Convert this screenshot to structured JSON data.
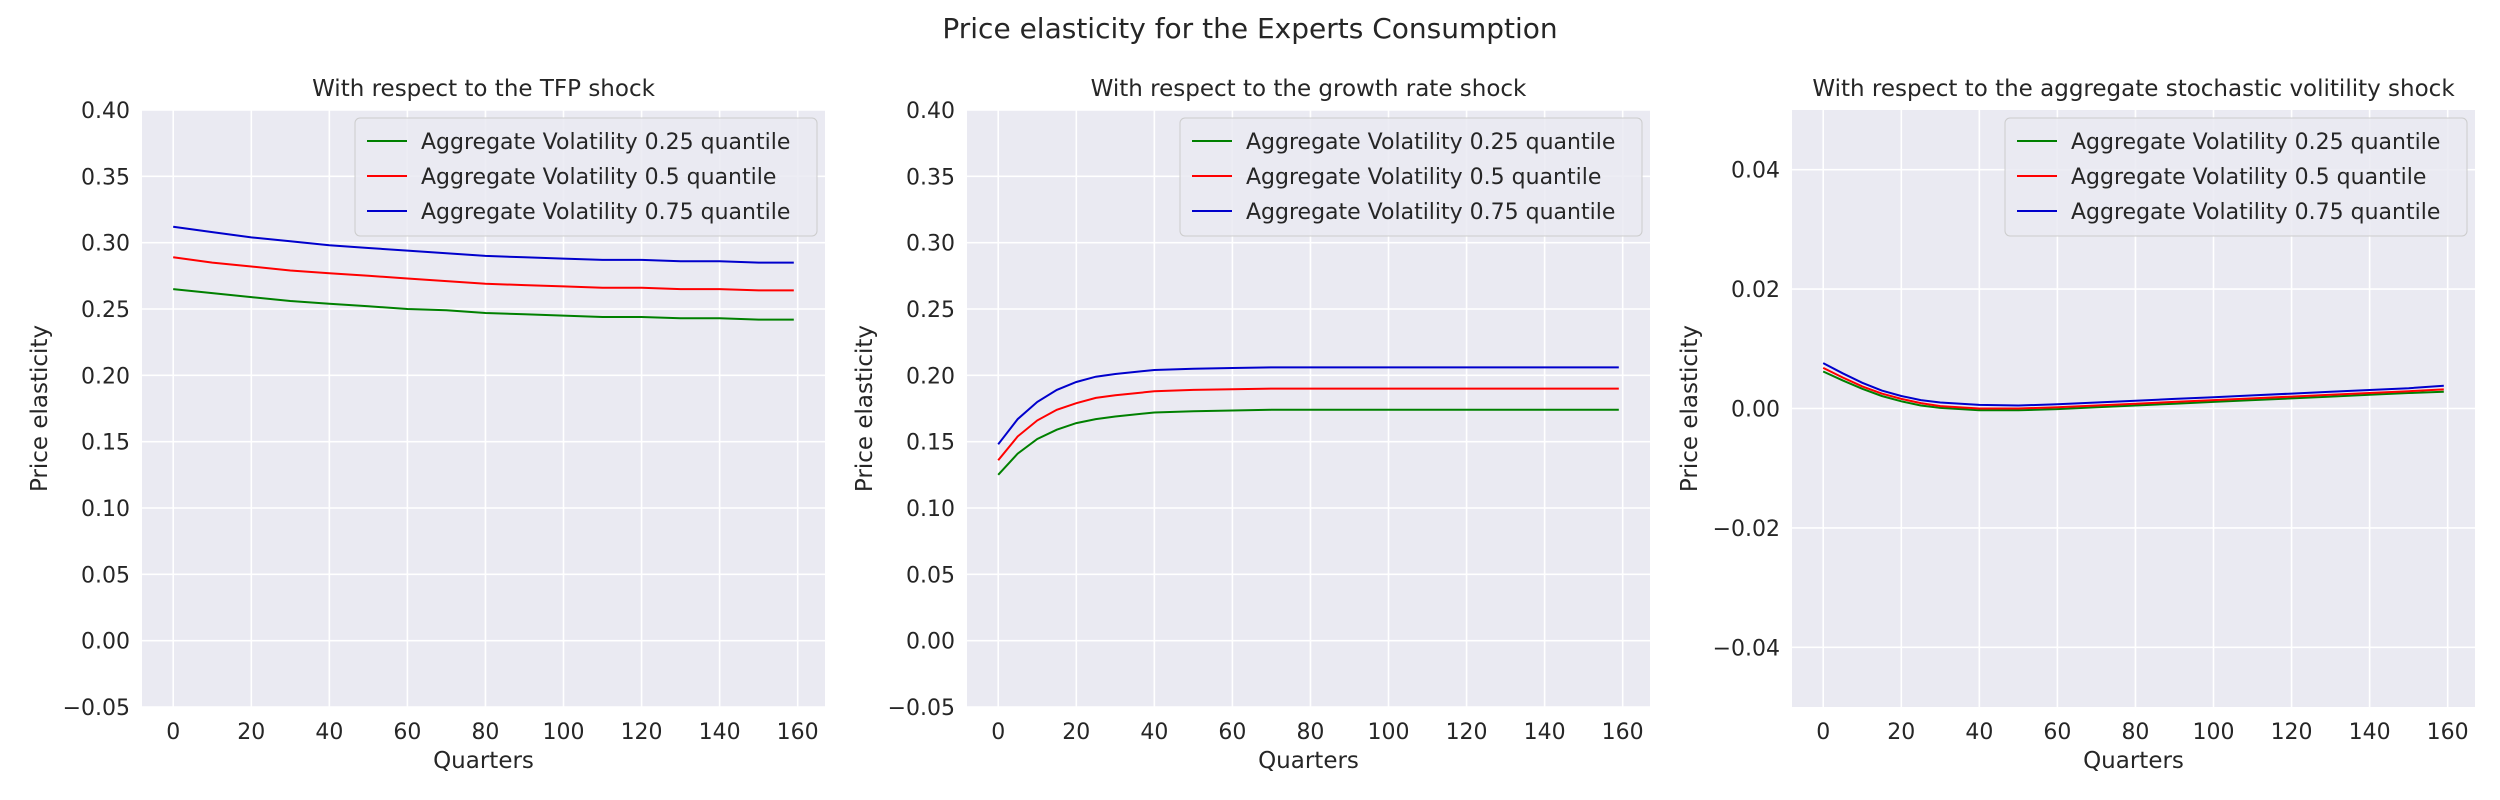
{
  "figure_title": "Price elasticity for the Experts Consumption",
  "chart_data": [
    {
      "type": "line",
      "title": "With respect to the TFP shock",
      "xlabel": "Quarters",
      "ylabel": "Price elasticity",
      "xlim": [
        -8,
        167
      ],
      "ylim": [
        -0.05,
        0.4
      ],
      "xticks": [
        0,
        20,
        40,
        60,
        80,
        100,
        120,
        140,
        160
      ],
      "xtick_labels": [
        "0",
        "20",
        "40",
        "60",
        "80",
        "100",
        "120",
        "140",
        "160"
      ],
      "yticks": [
        -0.05,
        0,
        0.05,
        0.1,
        0.15,
        0.2,
        0.25,
        0.3,
        0.35,
        0.4
      ],
      "ytick_labels": [
        "−0.05",
        "0.00",
        "0.05",
        "0.10",
        "0.15",
        "0.20",
        "0.25",
        "0.30",
        "0.35",
        "0.40"
      ],
      "grid": true,
      "legend_position": "top-right",
      "series": [
        {
          "name": "Aggregate Volatility 0.25 quantile",
          "color": "#008000",
          "x": [
            0,
            10,
            20,
            30,
            40,
            50,
            60,
            70,
            80,
            90,
            100,
            110,
            120,
            130,
            140,
            150,
            159
          ],
          "y": [
            0.265,
            0.262,
            0.259,
            0.256,
            0.254,
            0.252,
            0.25,
            0.249,
            0.247,
            0.246,
            0.245,
            0.244,
            0.244,
            0.243,
            0.243,
            0.242,
            0.242
          ]
        },
        {
          "name": "Aggregate Volatility 0.5 quantile",
          "color": "#ff0000",
          "x": [
            0,
            10,
            20,
            30,
            40,
            50,
            60,
            70,
            80,
            90,
            100,
            110,
            120,
            130,
            140,
            150,
            159
          ],
          "y": [
            0.289,
            0.285,
            0.282,
            0.279,
            0.277,
            0.275,
            0.273,
            0.271,
            0.269,
            0.268,
            0.267,
            0.266,
            0.266,
            0.265,
            0.265,
            0.264,
            0.264
          ]
        },
        {
          "name": "Aggregate Volatility 0.75 quantile",
          "color": "#0000cc",
          "x": [
            0,
            10,
            20,
            30,
            40,
            50,
            60,
            70,
            80,
            90,
            100,
            110,
            120,
            130,
            140,
            150,
            159
          ],
          "y": [
            0.312,
            0.308,
            0.304,
            0.301,
            0.298,
            0.296,
            0.294,
            0.292,
            0.29,
            0.289,
            0.288,
            0.287,
            0.287,
            0.286,
            0.286,
            0.285,
            0.285
          ]
        }
      ]
    },
    {
      "type": "line",
      "title": "With respect to the growth rate shock",
      "xlabel": "Quarters",
      "ylabel": "Price elasticity",
      "xlim": [
        -8,
        167
      ],
      "ylim": [
        -0.05,
        0.4
      ],
      "xticks": [
        0,
        20,
        40,
        60,
        80,
        100,
        120,
        140,
        160
      ],
      "xtick_labels": [
        "0",
        "20",
        "40",
        "60",
        "80",
        "100",
        "120",
        "140",
        "160"
      ],
      "yticks": [
        -0.05,
        0,
        0.05,
        0.1,
        0.15,
        0.2,
        0.25,
        0.3,
        0.35,
        0.4
      ],
      "ytick_labels": [
        "−0.05",
        "0.00",
        "0.05",
        "0.10",
        "0.15",
        "0.20",
        "0.25",
        "0.30",
        "0.35",
        "0.40"
      ],
      "grid": true,
      "legend_position": "top-right",
      "series": [
        {
          "name": "Aggregate Volatility 0.25 quantile",
          "color": "#008000",
          "x": [
            0,
            5,
            10,
            15,
            20,
            25,
            30,
            40,
            50,
            60,
            70,
            80,
            100,
            120,
            140,
            159
          ],
          "y": [
            0.125,
            0.141,
            0.152,
            0.159,
            0.164,
            0.167,
            0.169,
            0.172,
            0.173,
            0.1735,
            0.174,
            0.174,
            0.174,
            0.174,
            0.174,
            0.174
          ]
        },
        {
          "name": "Aggregate Volatility 0.5 quantile",
          "color": "#ff0000",
          "x": [
            0,
            5,
            10,
            15,
            20,
            25,
            30,
            40,
            50,
            60,
            70,
            80,
            100,
            120,
            140,
            159
          ],
          "y": [
            0.136,
            0.154,
            0.166,
            0.174,
            0.179,
            0.183,
            0.185,
            0.188,
            0.189,
            0.1895,
            0.19,
            0.19,
            0.19,
            0.19,
            0.19,
            0.19
          ]
        },
        {
          "name": "Aggregate Volatility 0.75 quantile",
          "color": "#0000cc",
          "x": [
            0,
            5,
            10,
            15,
            20,
            25,
            30,
            40,
            50,
            60,
            70,
            80,
            100,
            120,
            140,
            159
          ],
          "y": [
            0.148,
            0.167,
            0.18,
            0.189,
            0.195,
            0.199,
            0.201,
            0.204,
            0.205,
            0.2055,
            0.206,
            0.206,
            0.206,
            0.206,
            0.206,
            0.206
          ]
        }
      ]
    },
    {
      "type": "line",
      "title": "With respect to the aggregate stochastic volitility shock",
      "xlabel": "Quarters",
      "ylabel": "Price elasticity",
      "xlim": [
        -8,
        167
      ],
      "ylim": [
        -0.05,
        0.05
      ],
      "xticks": [
        0,
        20,
        40,
        60,
        80,
        100,
        120,
        140,
        160
      ],
      "xtick_labels": [
        "0",
        "20",
        "40",
        "60",
        "80",
        "100",
        "120",
        "140",
        "160"
      ],
      "yticks": [
        -0.04,
        -0.02,
        0,
        0.02,
        0.04
      ],
      "ytick_labels": [
        "−0.04",
        "−0.02",
        "0.00",
        "0.02",
        "0.04"
      ],
      "grid": true,
      "legend_position": "top-right",
      "series": [
        {
          "name": "Aggregate Volatility 0.25 quantile",
          "color": "#008000",
          "x": [
            0,
            5,
            10,
            15,
            20,
            25,
            30,
            40,
            50,
            60,
            70,
            80,
            90,
            100,
            110,
            120,
            130,
            140,
            150,
            159
          ],
          "y": [
            0.0062,
            0.0047,
            0.0033,
            0.0021,
            0.0012,
            0.0005,
            0.0001,
            -0.0003,
            -0.0003,
            -0.0001,
            0.0002,
            0.0005,
            0.0008,
            0.0011,
            0.0014,
            0.0017,
            0.002,
            0.0023,
            0.0026,
            0.0028
          ]
        },
        {
          "name": "Aggregate Volatility 0.5 quantile",
          "color": "#ff0000",
          "x": [
            0,
            5,
            10,
            15,
            20,
            25,
            30,
            40,
            50,
            60,
            70,
            80,
            90,
            100,
            110,
            120,
            130,
            140,
            150,
            159
          ],
          "y": [
            0.0068,
            0.0052,
            0.0037,
            0.0025,
            0.0016,
            0.0009,
            0.0004,
            0.0,
            0.0,
            0.0002,
            0.0005,
            0.0008,
            0.0011,
            0.0014,
            0.0017,
            0.002,
            0.0023,
            0.0026,
            0.0029,
            0.0032
          ]
        },
        {
          "name": "Aggregate Volatility 0.75 quantile",
          "color": "#0000cc",
          "x": [
            0,
            5,
            10,
            15,
            20,
            25,
            30,
            40,
            50,
            60,
            70,
            80,
            90,
            100,
            110,
            120,
            130,
            140,
            150,
            159
          ],
          "y": [
            0.0076,
            0.0059,
            0.0043,
            0.003,
            0.0021,
            0.0014,
            0.001,
            0.0006,
            0.0005,
            0.0007,
            0.001,
            0.0013,
            0.0016,
            0.0019,
            0.0022,
            0.0025,
            0.0028,
            0.0031,
            0.0034,
            0.0038
          ]
        }
      ]
    }
  ]
}
